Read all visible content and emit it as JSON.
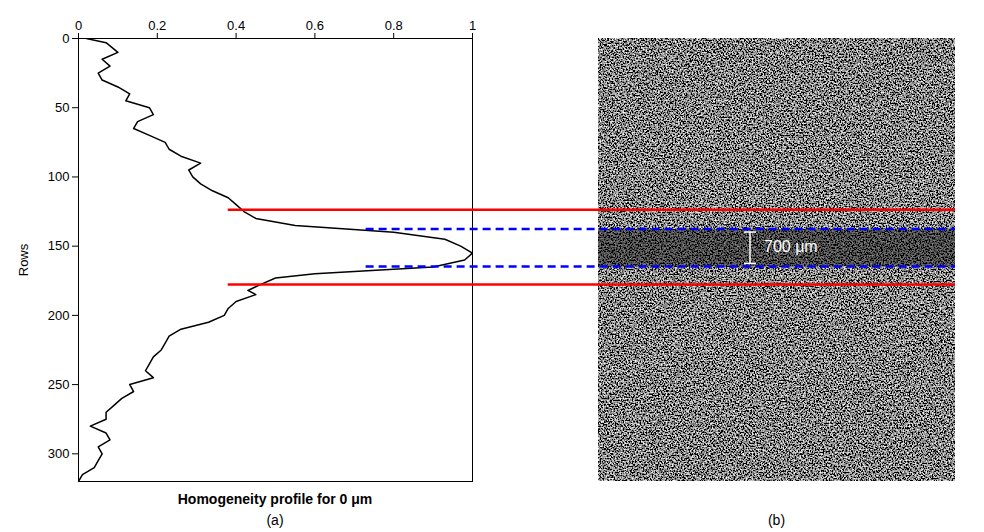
{
  "chart_data": {
    "type": "line",
    "xlabel": "Homogeneity profile for 0 μm",
    "ylabel": "Rows",
    "panel": "(a)",
    "color": "#000000",
    "xlim": [
      0,
      1
    ],
    "xticks": [
      0,
      0.2,
      0.4,
      0.6,
      0.8,
      1
    ],
    "ylim": [
      0,
      320
    ],
    "yticks": [
      0,
      50,
      100,
      150,
      200,
      250,
      300
    ],
    "rows": [
      0,
      3,
      10,
      15,
      20,
      25,
      30,
      35,
      40,
      45,
      50,
      55,
      60,
      65,
      70,
      75,
      80,
      85,
      90,
      95,
      100,
      105,
      110,
      115,
      120,
      125,
      130,
      135,
      140,
      145,
      150,
      155,
      160,
      165,
      170,
      173,
      178,
      182,
      185,
      190,
      195,
      200,
      205,
      210,
      215,
      220,
      225,
      230,
      235,
      240,
      245,
      250,
      255,
      260,
      265,
      270,
      275,
      280,
      285,
      290,
      295,
      300,
      305,
      310,
      315,
      320
    ],
    "values": [
      0.02,
      0.07,
      0.1,
      0.06,
      0.08,
      0.05,
      0.06,
      0.1,
      0.13,
      0.12,
      0.18,
      0.19,
      0.15,
      0.14,
      0.18,
      0.22,
      0.23,
      0.26,
      0.31,
      0.28,
      0.29,
      0.31,
      0.34,
      0.38,
      0.4,
      0.42,
      0.45,
      0.55,
      0.8,
      0.93,
      0.97,
      1.0,
      0.98,
      0.9,
      0.6,
      0.5,
      0.46,
      0.43,
      0.45,
      0.4,
      0.38,
      0.37,
      0.33,
      0.26,
      0.23,
      0.22,
      0.21,
      0.19,
      0.18,
      0.17,
      0.19,
      0.13,
      0.14,
      0.11,
      0.09,
      0.07,
      0.07,
      0.03,
      0.07,
      0.08,
      0.05,
      0.06,
      0.05,
      0.04,
      0.01,
      0.0
    ]
  },
  "image_panel": {
    "panel": "(b)",
    "annotation": "700 μm"
  },
  "marker_lines": {
    "red": {
      "rows": [
        124,
        178
      ],
      "x_start": 0.38,
      "color": "#ff0000",
      "line_style": "solid"
    },
    "blue": {
      "rows": [
        138,
        165
      ],
      "x_start": 0.73,
      "color": "#0000ff",
      "line_style": "dashed"
    }
  }
}
